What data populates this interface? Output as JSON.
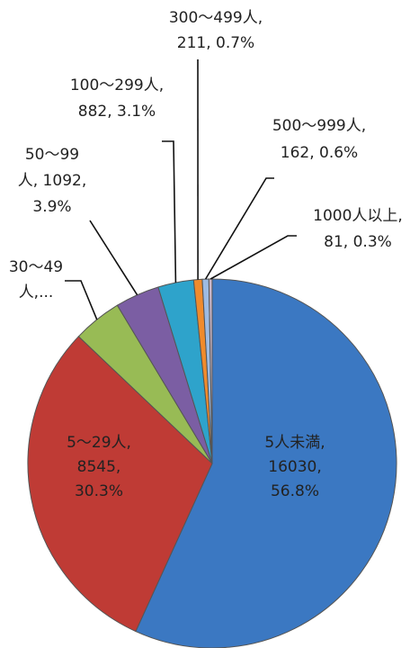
{
  "chart_data": {
    "type": "pie",
    "categories": [
      "5人未満",
      "5〜29人",
      "30〜49人",
      "50〜99人",
      "100〜299人",
      "300〜499人",
      "500〜999人",
      "1000人以上"
    ],
    "values": [
      16030,
      8545,
      1214,
      1092,
      882,
      211,
      162,
      81
    ],
    "value_labels": [
      [
        "5人未満,",
        "16030,",
        "56.8%"
      ],
      [
        "5〜29人,",
        "8545,",
        "30.3%"
      ],
      [
        "30〜49",
        "人,..."
      ],
      [
        "50〜99",
        "人, 1092,",
        "3.9%"
      ],
      [
        "100〜299人,",
        "882, 3.1%"
      ],
      [
        "300〜499人,",
        "211, 0.7%"
      ],
      [
        "500〜999人,",
        "162, 0.6%"
      ],
      [
        "1000人以上,",
        "81, 0.3%"
      ]
    ],
    "colors": [
      "#3b78c2",
      "#bf3b35",
      "#98bb55",
      "#7b5ea3",
      "#2ea3cb",
      "#f08b2c",
      "#9dbbe2",
      "#c9b6c8"
    ]
  }
}
